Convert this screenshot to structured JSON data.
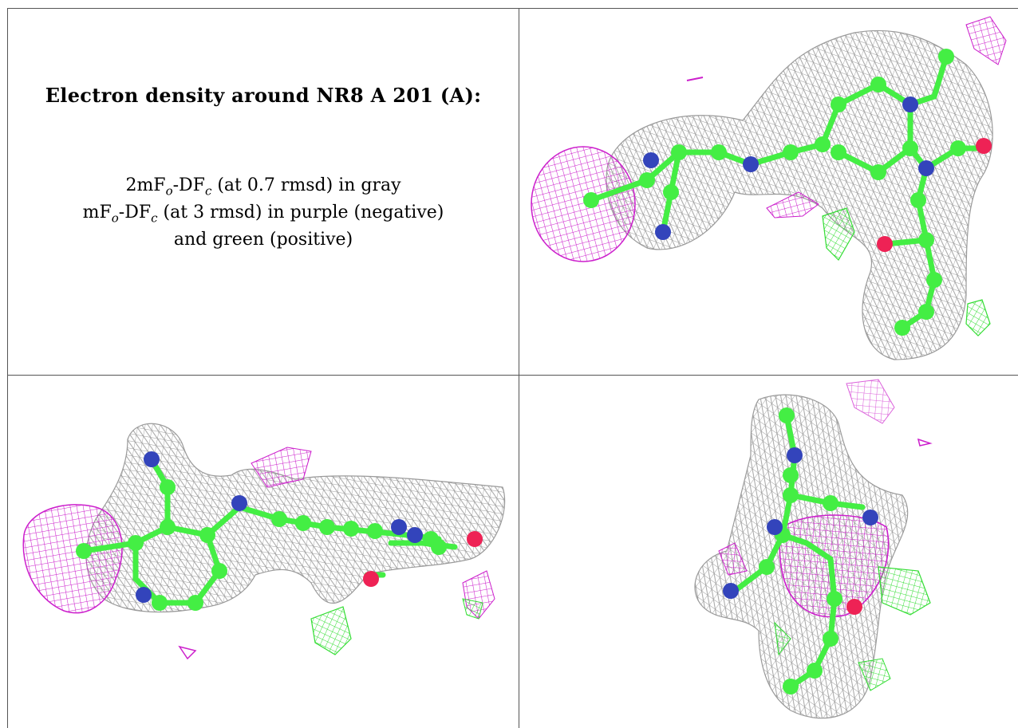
{
  "title": "Electron density around NR8 A 201 (A):",
  "legend": {
    "line1": {
      "pre": "2mF",
      "sub_o": "o",
      "mid": "-DF",
      "sub_c": "c",
      "post": " (at 0.7 rmsd) in gray"
    },
    "line2": {
      "pre": "mF",
      "sub_o": "o",
      "mid": "-DF",
      "sub_c": "c",
      "post": " (at 3 rmsd) in purple (negative)"
    },
    "line3": "and green (positive)"
  },
  "colors": {
    "mesh_2fofc": "#9a9a9a",
    "mesh_negative": "#cc1fcc",
    "mesh_positive": "#33dd33",
    "carbon": "#44ee44",
    "nitrogen": "#3344bb",
    "oxygen": "#ee2255",
    "border": "#555555"
  },
  "panels": [
    {
      "view": "top-right",
      "content": "ligand electron density view 1"
    },
    {
      "view": "bottom-left",
      "content": "ligand electron density view 2"
    },
    {
      "view": "bottom-right",
      "content": "ligand electron density view 3"
    }
  ]
}
